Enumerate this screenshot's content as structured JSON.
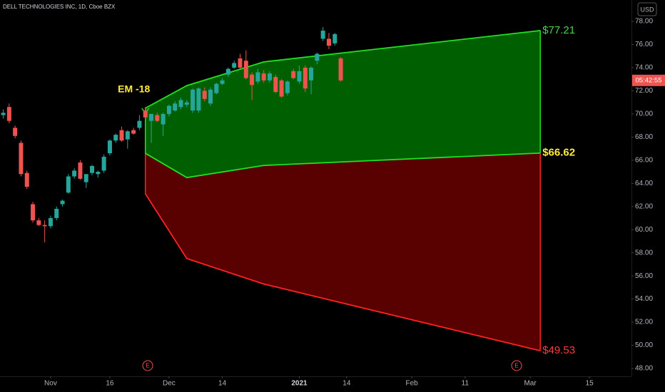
{
  "chart_data": {
    "type": "candlestick",
    "title": "DELL TECHNOLOGIES INC, 1D, Cboe BZX",
    "currency": "USD",
    "countdown": "05:42:55",
    "up_color": "#26a69a",
    "down_color": "#ef5350",
    "x": [
      -8,
      -7,
      -6,
      -5,
      -4,
      -3,
      -2,
      -1,
      0,
      1,
      2,
      3,
      4,
      5,
      6,
      7,
      8,
      9,
      10,
      11,
      12,
      13,
      14,
      15,
      16,
      17,
      18,
      19,
      20,
      21,
      22,
      23,
      24,
      25,
      26,
      27,
      28,
      29,
      30,
      31,
      32,
      33,
      34,
      35,
      36,
      37,
      38,
      39,
      40,
      41,
      42,
      43,
      44,
      45,
      46,
      47,
      48,
      49
    ],
    "open": [
      69.9,
      70.6,
      68.8,
      67.5,
      64.9,
      62.2,
      60.8,
      60.4,
      60.3,
      61.0,
      62.2,
      63.2,
      64.6,
      65.8,
      64.1,
      64.9,
      64.8,
      65.1,
      66.6,
      67.7,
      68.6,
      67.8,
      68.6,
      68.8,
      70.3,
      69.4,
      69.9,
      69.1,
      70.0,
      70.3,
      70.6,
      70.8,
      70.3,
      70.3,
      72.0,
      70.9,
      71.8,
      72.6,
      73.4,
      74.0,
      74.8,
      74.6,
      73.4,
      72.8,
      73.5,
      72.9,
      73.2,
      72.9,
      71.8,
      73.7,
      72.8,
      74.0,
      72.9,
      74.6,
      76.5,
      76.5,
      76.1,
      74.8
    ],
    "high": [
      70.4,
      70.9,
      69.0,
      67.7,
      65.1,
      62.4,
      61.0,
      60.8,
      61.2,
      62.0,
      62.6,
      64.8,
      65.3,
      66.0,
      64.8,
      65.6,
      65.1,
      66.5,
      67.8,
      68.3,
      68.9,
      68.6,
      68.8,
      69.9,
      70.6,
      70.0,
      70.1,
      70.1,
      70.8,
      71.1,
      71.4,
      71.2,
      72.2,
      72.3,
      72.3,
      72.3,
      72.7,
      73.1,
      74.0,
      74.6,
      75.2,
      75.5,
      73.6,
      73.9,
      73.8,
      73.7,
      73.4,
      73.0,
      72.9,
      73.9,
      74.2,
      74.2,
      74.1,
      75.3,
      77.5,
      77.0,
      77.0,
      74.9
    ],
    "low": [
      69.6,
      69.2,
      67.9,
      64.6,
      63.5,
      60.6,
      60.3,
      58.9,
      60.1,
      60.8,
      62.0,
      63.1,
      64.4,
      64.3,
      63.6,
      64.7,
      64.5,
      64.9,
      66.4,
      67.5,
      67.6,
      67.0,
      68.2,
      68.6,
      69.5,
      67.5,
      69.3,
      68.1,
      69.8,
      70.2,
      70.4,
      70.6,
      70.1,
      70.1,
      71.1,
      70.7,
      71.7,
      72.5,
      73.2,
      73.9,
      73.9,
      73.0,
      71.2,
      72.6,
      72.7,
      72.7,
      71.8,
      71.4,
      71.6,
      73.0,
      72.6,
      71.9,
      71.7,
      74.3,
      76.3,
      75.6,
      75.9,
      72.8
    ],
    "close": [
      70.1,
      69.4,
      68.1,
      64.8,
      63.7,
      60.8,
      60.4,
      60.3,
      61.0,
      61.8,
      62.5,
      64.6,
      65.1,
      64.4,
      64.8,
      65.5,
      65.0,
      66.3,
      67.7,
      68.2,
      67.7,
      68.5,
      68.3,
      69.4,
      69.7,
      70.0,
      69.4,
      70.0,
      70.7,
      70.9,
      71.2,
      71.0,
      72.1,
      72.2,
      71.3,
      72.1,
      72.6,
      72.9,
      73.9,
      74.4,
      74.0,
      73.1,
      72.5,
      73.6,
      72.9,
      73.5,
      71.9,
      71.5,
      72.8,
      73.1,
      73.7,
      72.2,
      74.0,
      75.2,
      77.2,
      75.9,
      76.9,
      72.9
    ],
    "expected_move": {
      "label": "EM -18",
      "x": [
        16,
        23,
        36,
        82.7
      ],
      "series": [
        {
          "name": "upper",
          "line_color": "#22e022",
          "label_color": "#4cd04c",
          "values": [
            70.5,
            72.45,
            74.5,
            77.21
          ],
          "value_label": "$77.21"
        },
        {
          "name": "middle",
          "line_color": "#22e022",
          "label_color": "#ffeb3b",
          "values": [
            66.6,
            64.5,
            65.55,
            66.62
          ],
          "value_label": "$66.62"
        },
        {
          "name": "lower",
          "line_color": "#ff2222",
          "label_color": "#ff3b3b",
          "values": [
            63.1,
            57.5,
            55.3,
            49.53
          ],
          "value_label": "$49.53"
        }
      ],
      "upper_fill": "#006400",
      "lower_fill": "#5e0000"
    },
    "earnings": {
      "label": "E",
      "x": [
        16.4,
        78.7
      ]
    },
    "xlim": [
      -8.55,
      98.1
    ],
    "xticks": [
      {
        "value": 0,
        "label": "Nov"
      },
      {
        "value": 10,
        "label": "16"
      },
      {
        "value": 20,
        "label": "Dec"
      },
      {
        "value": 29,
        "label": "14"
      },
      {
        "value": 42,
        "label": "2021"
      },
      {
        "value": 50,
        "label": "14"
      },
      {
        "value": 61,
        "label": "Feb"
      },
      {
        "value": 70,
        "label": "11"
      },
      {
        "value": 81,
        "label": "Mar"
      },
      {
        "value": 91,
        "label": "15"
      }
    ],
    "ylim": [
      47.32,
      79.85
    ],
    "yticks": [
      {
        "value": 48,
        "label": "48.00"
      },
      {
        "value": 50,
        "label": "50.00"
      },
      {
        "value": 52,
        "label": "52.00"
      },
      {
        "value": 54,
        "label": "54.00"
      },
      {
        "value": 56,
        "label": "56.00"
      },
      {
        "value": 58,
        "label": "58.00"
      },
      {
        "value": 60,
        "label": "60.00"
      },
      {
        "value": 62,
        "label": "62.00"
      },
      {
        "value": 64,
        "label": "64.00"
      },
      {
        "value": 66,
        "label": "66.00"
      },
      {
        "value": 68,
        "label": "68.00"
      },
      {
        "value": 70,
        "label": "70.00"
      },
      {
        "value": 72,
        "label": "72.00"
      },
      {
        "value": 74,
        "label": "74.00"
      },
      {
        "value": 76,
        "label": "76.00"
      },
      {
        "value": 78,
        "label": "78.00"
      }
    ],
    "grid": false
  }
}
